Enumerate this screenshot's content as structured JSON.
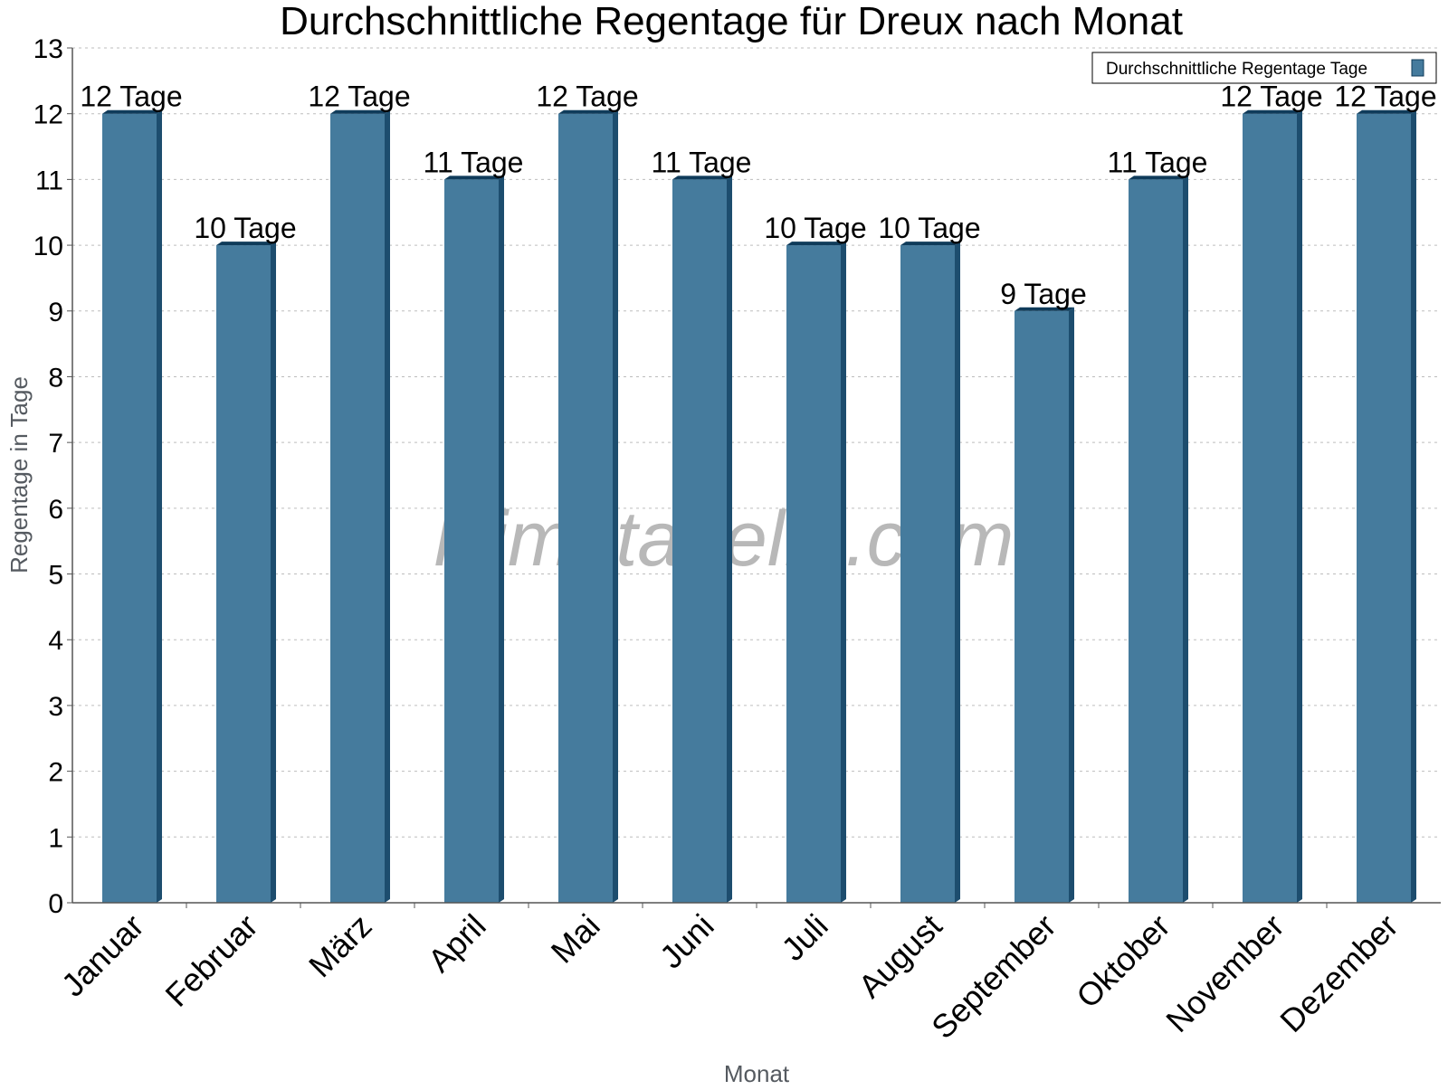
{
  "watermark": "klimatabelle.com",
  "colors": {
    "bar_face": "#457b9d",
    "bar_side": "#1d4d6e",
    "bar_top": "#0f3b5a",
    "grid": "#bdbdbd",
    "axis": "#555555"
  },
  "chart_data": {
    "type": "bar",
    "title": "Durchschnittliche Regentage für Dreux nach Monat",
    "xlabel": "Monat",
    "ylabel": "Regentage in Tage",
    "ylim": [
      0,
      13
    ],
    "yticks": [
      "0",
      "1",
      "2",
      "3",
      "4",
      "5",
      "6",
      "7",
      "8",
      "9",
      "10",
      "11",
      "12",
      "13"
    ],
    "grid": true,
    "legend_position": "top-right",
    "categories": [
      "Januar",
      "Februar",
      "März",
      "April",
      "Mai",
      "Juni",
      "Juli",
      "August",
      "September",
      "Oktober",
      "November",
      "Dezember"
    ],
    "series": [
      {
        "name": "Durchschnittliche Regentage Tage",
        "values": [
          12,
          10,
          12,
          11,
          12,
          11,
          10,
          10,
          9,
          11,
          12,
          12
        ],
        "labels": [
          "12 Tage",
          "10 Tage",
          "12 Tage",
          "11 Tage",
          "12 Tage",
          "11 Tage",
          "10 Tage",
          "10 Tage",
          "9 Tage",
          "11 Tage",
          "12 Tage",
          "12 Tage"
        ]
      }
    ]
  }
}
